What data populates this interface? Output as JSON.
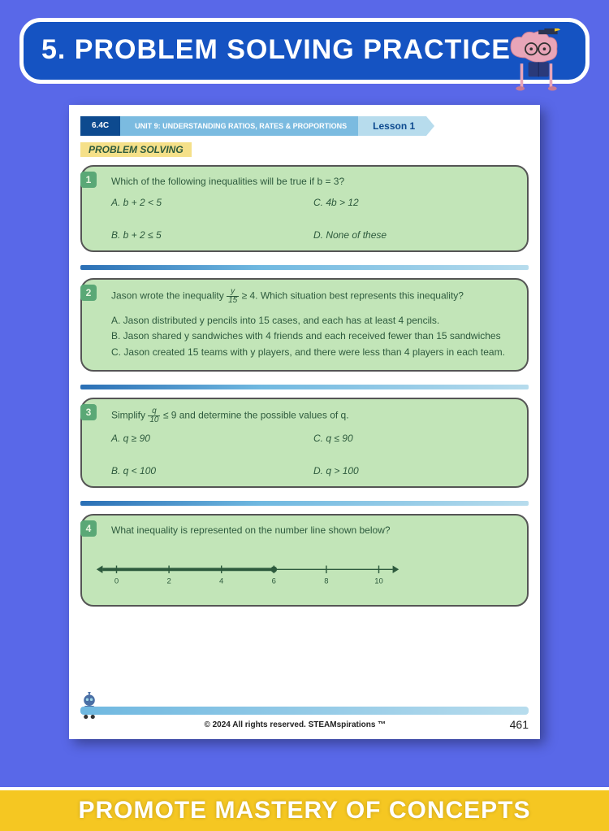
{
  "header": {
    "title": "5. PROBLEM SOLVING PRACTICE"
  },
  "worksheet": {
    "standard": "6.4C",
    "unit": "UNIT 9: UNDERSTANDING RATIOS, RATES & PROPORTIONS",
    "lesson": "Lesson 1",
    "section": "PROBLEM SOLVING",
    "questions": [
      {
        "num": "1",
        "text": "Which of the following inequalities will be true if b = 3?",
        "options": {
          "A": "b + 2 < 5",
          "B": "b + 2 ≤ 5",
          "C": "4b > 12",
          "D": "None of these"
        }
      },
      {
        "num": "2",
        "text_pre": "Jason wrote the inequality ",
        "frac_n": "y",
        "frac_d": "15",
        "text_post": " ≥ 4. Which situation best represents this inequality?",
        "lines": [
          "A. Jason distributed y pencils into 15 cases, and each has at least 4 pencils.",
          "B. Jason shared y sandwiches with 4 friends and each received fewer than 15 sandwiches",
          "C. Jason created 15 teams with y players, and there were less than 4 players in each team."
        ]
      },
      {
        "num": "3",
        "text_pre": "Simplify ",
        "frac_n": "q",
        "frac_d": "10",
        "text_post": " ≤ 9 and determine the possible values of q.",
        "options": {
          "A": "q ≥ 90",
          "B": "q < 100",
          "C": "q ≤ 90",
          "D": "q > 100"
        }
      },
      {
        "num": "4",
        "text": "What inequality is represented on the number line shown below?",
        "numberline": {
          "ticks": [
            "0",
            "2",
            "4",
            "6",
            "8",
            "10"
          ],
          "fill_end_index": 3,
          "line_color": "#2d5a3d",
          "fill_color": "#2d5a3d"
        }
      }
    ],
    "copyright": "© 2024 All rights reserved. STEAMspirations ™",
    "page": "461"
  },
  "footer": {
    "text": "PROMOTE MASTERY OF CONCEPTS"
  },
  "colors": {
    "page_bg": "#5968e8",
    "header_bg": "#1553c2",
    "box_bg": "#c2e5b8",
    "box_text": "#2d5a3d",
    "footer_bg": "#f5c722"
  }
}
